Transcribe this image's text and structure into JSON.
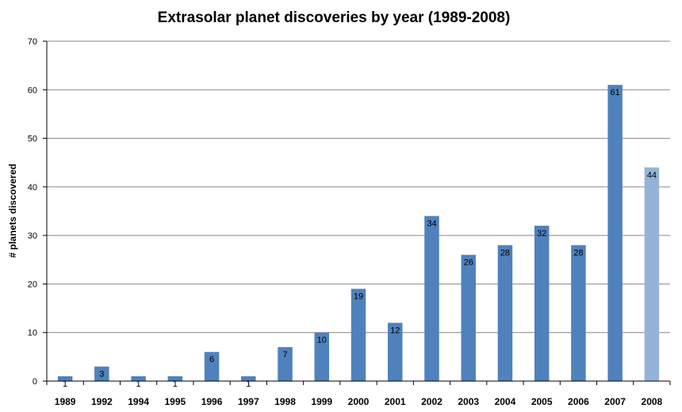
{
  "chart_data": {
    "type": "bar",
    "title": "Extrasolar planet discoveries by year (1989-2008)",
    "xlabel": "",
    "ylabel": "# planets discovered",
    "ylim": [
      0,
      70
    ],
    "y_ticks": [
      0,
      10,
      20,
      30,
      40,
      50,
      60,
      70
    ],
    "grid": "horizontal",
    "legend": "none",
    "categories": [
      "1989",
      "1992",
      "1994",
      "1995",
      "1996",
      "1997",
      "1998",
      "1999",
      "2000",
      "2001",
      "2002",
      "2003",
      "2004",
      "2005",
      "2006",
      "2007",
      "2008"
    ],
    "values": [
      1,
      3,
      1,
      1,
      6,
      1,
      7,
      10,
      19,
      12,
      34,
      26,
      28,
      32,
      28,
      61,
      44
    ],
    "colors": {
      "bar": "#4f81bd",
      "bar_highlight": "#95b3d7",
      "gridline": "#868686",
      "axis": "#000000"
    },
    "highlighted_categories": [
      "2008"
    ]
  }
}
